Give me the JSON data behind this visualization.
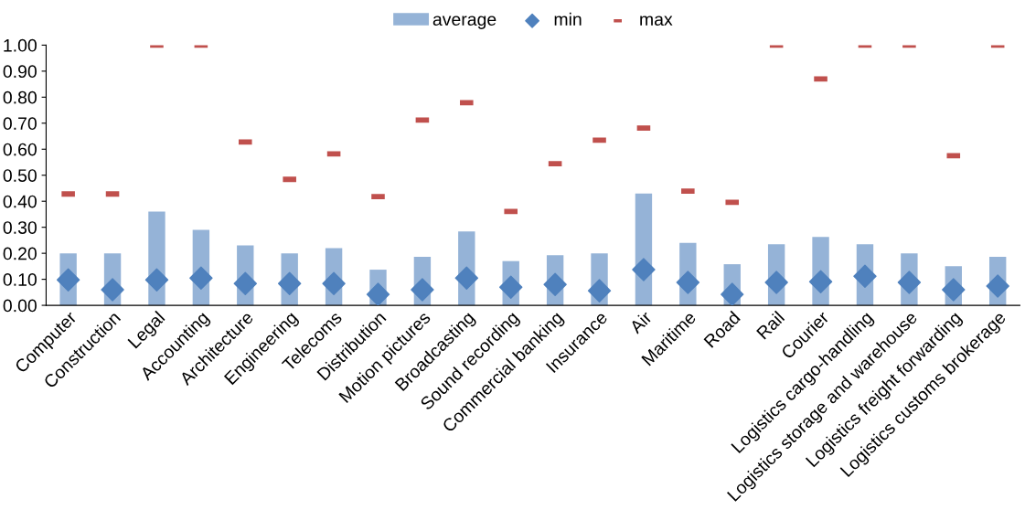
{
  "chart_data": {
    "type": "bar",
    "categories": [
      "Computer",
      "Construction",
      "Legal",
      "Accounting",
      "Architecture",
      "Engineering",
      "Telecoms",
      "Distribution",
      "Motion pictures",
      "Broadcasting",
      "Sound recording",
      "Commercial banking",
      "Insurance",
      "Air",
      "Maritime",
      "Road",
      "Rail",
      "Courier",
      "Logistics cargo-handling",
      "Logistics storage and warehouse",
      "Logistics freight forwarding",
      "Logistics customs brokerage"
    ],
    "series": [
      {
        "name": "average",
        "color": "#95b3d7",
        "values": [
          0.2,
          0.2,
          0.36,
          0.29,
          0.23,
          0.2,
          0.22,
          0.137,
          0.186,
          0.284,
          0.17,
          0.193,
          0.2,
          0.43,
          0.24,
          0.158,
          0.235,
          0.263,
          0.235,
          0.2,
          0.15,
          0.186
        ]
      },
      {
        "name": "min",
        "type": "scatter",
        "marker": "diamond",
        "color": "#4f81bd",
        "values": [
          0.098,
          0.06,
          0.098,
          0.105,
          0.084,
          0.084,
          0.084,
          0.042,
          0.06,
          0.105,
          0.07,
          0.08,
          0.056,
          0.137,
          0.088,
          0.042,
          0.088,
          0.091,
          0.112,
          0.088,
          0.06,
          0.074
        ]
      },
      {
        "name": "max",
        "type": "scatter",
        "marker": "square",
        "color": "#c0504d",
        "values": [
          0.428,
          0.428,
          1.0,
          1.0,
          0.628,
          0.484,
          0.582,
          0.418,
          0.712,
          0.779,
          0.361,
          0.544,
          0.635,
          0.681,
          0.439,
          0.396,
          1.0,
          0.87,
          1.0,
          1.0,
          0.575,
          1.0
        ]
      }
    ],
    "ylim": [
      0,
      1.0
    ],
    "yticks": [
      {
        "value": 0,
        "label": "0.00"
      },
      {
        "value": 0.1,
        "label": "0.10"
      },
      {
        "value": 0.2,
        "label": "0.20"
      },
      {
        "value": 0.3,
        "label": "0.30"
      },
      {
        "value": 0.4,
        "label": "0.40"
      },
      {
        "value": 0.5,
        "label": "0.50"
      },
      {
        "value": 0.6,
        "label": "0.60"
      },
      {
        "value": 0.7,
        "label": "0.70"
      },
      {
        "value": 0.8,
        "label": "0.80"
      },
      {
        "value": 0.9,
        "label": "0.90"
      },
      {
        "value": 1.0,
        "label": "1.00"
      }
    ],
    "grid": false,
    "legend": "top"
  }
}
